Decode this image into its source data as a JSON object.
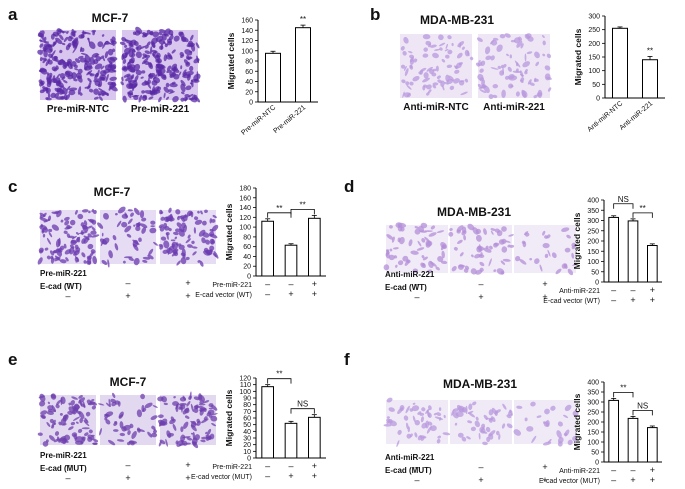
{
  "panels": [
    {
      "id": "a",
      "title": "MCF-7",
      "layout": "top",
      "image_labels": [
        "Pre-miR-NTC",
        "Pre-miR-221"
      ],
      "chart": {
        "type": "bar",
        "ylabel": "Migrated cells",
        "ylim": [
          0,
          160
        ],
        "yticks": [
          0,
          20,
          40,
          60,
          80,
          100,
          120,
          140,
          160
        ],
        "categories": [
          "Pre-miR-NTC",
          "Pre-miR-221"
        ],
        "values": [
          95,
          145
        ],
        "errors": [
          4,
          5
        ],
        "sig": [
          {
            "bar": 1,
            "text": "**"
          }
        ]
      },
      "swatch": [
        "#d8c6ee",
        "#5a2aa6"
      ]
    },
    {
      "id": "b",
      "title": "MDA-MB-231",
      "layout": "top",
      "image_labels": [
        "Anti-miR-NTC",
        "Anti-miR-221"
      ],
      "chart": {
        "type": "bar",
        "ylabel": "Migrated cells",
        "ylim": [
          0,
          300
        ],
        "yticks": [
          0,
          50,
          100,
          150,
          200,
          250,
          300
        ],
        "categories": [
          "Anti-miR-NTC",
          "Anti-miR-221"
        ],
        "values": [
          255,
          140
        ],
        "errors": [
          5,
          12
        ],
        "sig": [
          {
            "bar": 1,
            "text": "**"
          }
        ]
      },
      "swatch": [
        "#eee6f5",
        "#b898de"
      ]
    },
    {
      "id": "c",
      "title": "MCF-7",
      "layout": "cond",
      "conditions": [
        {
          "name": "Pre-miR-221",
          "signs": [
            "–",
            "–",
            "+"
          ]
        },
        {
          "name": "E-cad (WT)",
          "signs": [
            "–",
            "+",
            "+"
          ]
        }
      ],
      "chart": {
        "type": "bar",
        "ylabel": "Migrated cells",
        "ylim": [
          0,
          180
        ],
        "yticks": [
          0,
          20,
          40,
          60,
          80,
          100,
          120,
          140,
          160,
          180
        ],
        "values": [
          112,
          63,
          118
        ],
        "errors": [
          5,
          3,
          6
        ],
        "rows": [
          {
            "name": "Pre-miR-221",
            "signs": [
              "–",
              "–",
              "+"
            ]
          },
          {
            "name": "E-cad vector (WT)",
            "signs": [
              "–",
              "+",
              "+"
            ]
          }
        ],
        "brackets": [
          {
            "from": 0,
            "to": 1,
            "text": "**"
          },
          {
            "from": 1,
            "to": 2,
            "text": "**"
          }
        ]
      },
      "swatch": [
        "#e6dcf3",
        "#6b3bb0"
      ]
    },
    {
      "id": "d",
      "title": "MDA-MB-231",
      "layout": "cond",
      "conditions": [
        {
          "name": "Anti-miR-221",
          "signs": [
            "–",
            "–",
            "+"
          ]
        },
        {
          "name": "E-cad (WT)",
          "signs": [
            "–",
            "+",
            "+"
          ]
        }
      ],
      "chart": {
        "type": "bar",
        "ylabel": "Migrated cells",
        "ylim": [
          0,
          400
        ],
        "yticks": [
          0,
          50,
          100,
          150,
          200,
          250,
          300,
          350,
          400
        ],
        "values": [
          315,
          298,
          178
        ],
        "errors": [
          8,
          10,
          8
        ],
        "rows": [
          {
            "name": "Anti-miR-221",
            "signs": [
              "–",
              "–",
              "+"
            ]
          },
          {
            "name": "E-cad vector (WT)",
            "signs": [
              "–",
              "+",
              "+"
            ]
          }
        ],
        "brackets": [
          {
            "from": 0,
            "to": 1,
            "text": "NS"
          },
          {
            "from": 1,
            "to": 2,
            "text": "**"
          }
        ]
      },
      "swatch": [
        "#f1eaf7",
        "#b38ed8"
      ]
    },
    {
      "id": "e",
      "title": "MCF-7",
      "layout": "cond",
      "conditions": [
        {
          "name": "Pre-miR-221",
          "signs": [
            "–",
            "–",
            "+"
          ]
        },
        {
          "name": "E-cad (MUT)",
          "signs": [
            "–",
            "+",
            "+"
          ]
        }
      ],
      "chart": {
        "type": "bar",
        "ylabel": "Migrated cells",
        "ylim": [
          0,
          120
        ],
        "yticks": [
          0,
          10,
          20,
          30,
          40,
          50,
          60,
          70,
          80,
          90,
          100,
          110,
          120
        ],
        "values": [
          107,
          52,
          61
        ],
        "errors": [
          3,
          3,
          4
        ],
        "rows": [
          {
            "name": "Pre-miR-221",
            "signs": [
              "–",
              "–",
              "+"
            ]
          },
          {
            "name": "E-cad vector (MUT)",
            "signs": [
              "–",
              "+",
              "+"
            ]
          }
        ],
        "brackets": [
          {
            "from": 0,
            "to": 1,
            "text": "**"
          },
          {
            "from": 1,
            "to": 2,
            "text": "NS"
          }
        ]
      },
      "swatch": [
        "#e2d8f0",
        "#6d3fae"
      ]
    },
    {
      "id": "f",
      "title": "MDA-MB-231",
      "layout": "cond",
      "conditions": [
        {
          "name": "Anti-miR-221",
          "signs": [
            "–",
            "–",
            "+"
          ]
        },
        {
          "name": "E-cad (MUT)",
          "signs": [
            "–",
            "+",
            "+"
          ]
        }
      ],
      "chart": {
        "type": "bar",
        "ylabel": "Migrated cells",
        "ylim": [
          0,
          400
        ],
        "yticks": [
          0,
          50,
          100,
          150,
          200,
          250,
          300,
          350,
          400
        ],
        "values": [
          308,
          218,
          172
        ],
        "errors": [
          10,
          10,
          8
        ],
        "rows": [
          {
            "name": "Anti-miR-221",
            "signs": [
              "–",
              "–",
              "+"
            ]
          },
          {
            "name": "E-cad vector (MUT)",
            "signs": [
              "–",
              "+",
              "+"
            ]
          }
        ],
        "brackets": [
          {
            "from": 0,
            "to": 1,
            "text": "**"
          },
          {
            "from": 1,
            "to": 2,
            "text": "NS"
          }
        ]
      },
      "swatch": [
        "#f0eaf7",
        "#b898de"
      ]
    }
  ],
  "chart_data": [
    {
      "type": "bar",
      "panel": "a",
      "ylabel": "Migrated cells",
      "categories": [
        "Pre-miR-NTC",
        "Pre-miR-221"
      ],
      "values": [
        95,
        145
      ],
      "ylim": [
        0,
        160
      ]
    },
    {
      "type": "bar",
      "panel": "b",
      "ylabel": "Migrated cells",
      "categories": [
        "Anti-miR-NTC",
        "Anti-miR-221"
      ],
      "values": [
        255,
        140
      ],
      "ylim": [
        0,
        300
      ]
    },
    {
      "type": "bar",
      "panel": "c",
      "ylabel": "Migrated cells",
      "values": [
        112,
        63,
        118
      ],
      "ylim": [
        0,
        180
      ]
    },
    {
      "type": "bar",
      "panel": "d",
      "ylabel": "Migrated cells",
      "values": [
        315,
        298,
        178
      ],
      "ylim": [
        0,
        400
      ]
    },
    {
      "type": "bar",
      "panel": "e",
      "ylabel": "Migrated cells",
      "values": [
        107,
        52,
        61
      ],
      "ylim": [
        0,
        120
      ]
    },
    {
      "type": "bar",
      "panel": "f",
      "ylabel": "Migrated cells",
      "values": [
        308,
        218,
        172
      ],
      "ylim": [
        0,
        400
      ]
    }
  ]
}
